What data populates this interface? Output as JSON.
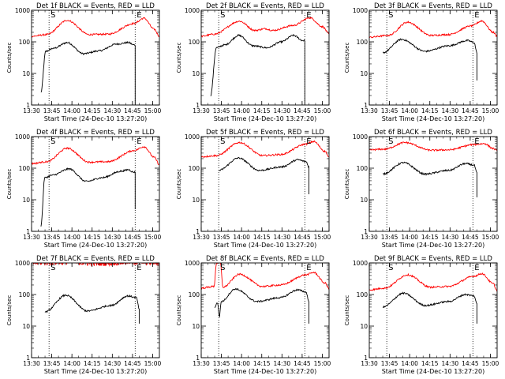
{
  "chart_data": [
    {
      "type": "line",
      "title": "Det 1f BLACK = Events, RED = LLD",
      "ylabel": "Counts/sec",
      "yscale": "log",
      "ylim": [
        1,
        1000
      ],
      "xlabel": "Start Time (24-Dec-10 13:27:20)",
      "xlim": [
        "13:30",
        "15:05"
      ],
      "xticks": [
        "13:30",
        "13:45",
        "14:00",
        "14:15",
        "14:30",
        "14:45",
        "15:00"
      ],
      "yticks": [
        "1",
        "10",
        "100",
        "1000"
      ],
      "markers": {
        "S": "13:43",
        "E": "14:47"
      },
      "series": [
        {
          "color": "#000000",
          "start": "13:37",
          "end": "14:47",
          "drop_end": 1,
          "knots": [
            [
              0,
              2.5
            ],
            [
              0.05,
              50
            ],
            [
              0.13,
              62
            ],
            [
              0.28,
              95
            ],
            [
              0.45,
              42
            ],
            [
              0.62,
              52
            ],
            [
              0.8,
              85
            ],
            [
              0.93,
              95
            ],
            [
              0.985,
              80
            ]
          ]
        },
        {
          "color": "#ff0000",
          "start": "13:30",
          "end": "15:05",
          "knots": [
            [
              0,
              150
            ],
            [
              0.12,
              170
            ],
            [
              0.28,
              480
            ],
            [
              0.45,
              170
            ],
            [
              0.6,
              175
            ],
            [
              0.8,
              380
            ],
            [
              0.88,
              560
            ],
            [
              0.96,
              250
            ],
            [
              1,
              150
            ]
          ]
        }
      ]
    },
    {
      "type": "line",
      "title": "Det 2f BLACK = Events, RED = LLD",
      "ylabel": "Counts/sec",
      "yscale": "log",
      "ylim": [
        1,
        1000
      ],
      "xlabel": "Start Time (24-Dec-10 13:27:20)",
      "xlim": [
        "13:30",
        "15:05"
      ],
      "xticks": [
        "13:30",
        "13:45",
        "14:00",
        "14:15",
        "14:30",
        "14:45",
        "15:00"
      ],
      "yticks": [
        "1",
        "10",
        "100",
        "1000"
      ],
      "markers": {
        "S": "13:43",
        "E": "14:47"
      },
      "series": [
        {
          "color": "#000000",
          "start": "13:37",
          "end": "14:47",
          "drop_end": 1,
          "knots": [
            [
              0,
              2
            ],
            [
              0.06,
              65
            ],
            [
              0.15,
              80
            ],
            [
              0.3,
              160
            ],
            [
              0.45,
              75
            ],
            [
              0.6,
              65
            ],
            [
              0.75,
              100
            ],
            [
              0.88,
              160
            ],
            [
              0.98,
              110
            ]
          ]
        },
        {
          "color": "#ff0000",
          "start": "13:30",
          "end": "15:05",
          "knots": [
            [
              0,
              150
            ],
            [
              0.1,
              175
            ],
            [
              0.3,
              450
            ],
            [
              0.42,
              230
            ],
            [
              0.5,
              260
            ],
            [
              0.56,
              230
            ],
            [
              0.72,
              330
            ],
            [
              0.85,
              580
            ],
            [
              0.95,
              300
            ],
            [
              1,
              180
            ]
          ]
        }
      ]
    },
    {
      "type": "line",
      "title": "Det 3f BLACK = Events, RED = LLD",
      "ylabel": "Counts/sec",
      "yscale": "log",
      "ylim": [
        1,
        1000
      ],
      "xlabel": "Start Time (24-Dec-10 13:27:20)",
      "xlim": [
        "13:30",
        "15:05"
      ],
      "xticks": [
        "13:30",
        "13:45",
        "14:00",
        "14:15",
        "14:30",
        "14:45",
        "15:00"
      ],
      "yticks": [
        "1",
        "10",
        "100",
        "1000"
      ],
      "markers": {
        "S": "13:43",
        "E": "14:47"
      },
      "series": [
        {
          "color": "#000000",
          "start": "13:40",
          "end": "14:50",
          "drop_end": 6,
          "knots": [
            [
              0,
              45
            ],
            [
              0.2,
              120
            ],
            [
              0.45,
              50
            ],
            [
              0.7,
              75
            ],
            [
              0.9,
              110
            ],
            [
              0.97,
              95
            ],
            [
              1,
              45
            ]
          ]
        },
        {
          "color": "#ff0000",
          "start": "13:30",
          "end": "15:05",
          "knots": [
            [
              0,
              140
            ],
            [
              0.15,
              160
            ],
            [
              0.3,
              420
            ],
            [
              0.48,
              160
            ],
            [
              0.62,
              170
            ],
            [
              0.8,
              320
            ],
            [
              0.88,
              460
            ],
            [
              0.97,
              200
            ],
            [
              1,
              150
            ]
          ]
        }
      ]
    },
    {
      "type": "line",
      "title": "Det 4f BLACK = Events, RED = LLD",
      "ylabel": "Counts/sec",
      "yscale": "log",
      "ylim": [
        1,
        1000
      ],
      "xlabel": "Start Time (24-Dec-10 13:27:20)",
      "xlim": [
        "13:30",
        "15:05"
      ],
      "xticks": [
        "13:30",
        "13:45",
        "14:00",
        "14:15",
        "14:30",
        "14:45",
        "15:00"
      ],
      "yticks": [
        "1",
        "10",
        "100",
        "1000"
      ],
      "markers": {
        "S": "13:43",
        "E": "14:47"
      },
      "series": [
        {
          "color": "#000000",
          "start": "13:37",
          "end": "14:47",
          "drop_end": 5,
          "knots": [
            [
              0,
              1.5
            ],
            [
              0.04,
              50
            ],
            [
              0.12,
              60
            ],
            [
              0.3,
              95
            ],
            [
              0.48,
              38
            ],
            [
              0.65,
              50
            ],
            [
              0.85,
              80
            ],
            [
              0.93,
              90
            ],
            [
              0.98,
              75
            ]
          ]
        },
        {
          "color": "#ff0000",
          "start": "13:30",
          "end": "15:05",
          "knots": [
            [
              0,
              140
            ],
            [
              0.12,
              160
            ],
            [
              0.28,
              430
            ],
            [
              0.45,
              155
            ],
            [
              0.6,
              160
            ],
            [
              0.8,
              360
            ],
            [
              0.88,
              480
            ],
            [
              0.96,
              220
            ],
            [
              1,
              130
            ]
          ]
        }
      ]
    },
    {
      "type": "line",
      "title": "Det 5f BLACK = Events, RED = LLD",
      "ylabel": "Counts/sec",
      "yscale": "log",
      "ylim": [
        1,
        1000
      ],
      "xlabel": "Start Time (24-Dec-10 13:27:20)",
      "xlim": [
        "13:30",
        "15:05"
      ],
      "xticks": [
        "13:30",
        "13:45",
        "14:00",
        "14:15",
        "14:30",
        "14:45",
        "15:00"
      ],
      "yticks": [
        "1",
        "10",
        "100",
        "1000"
      ],
      "markers": {
        "S": "13:43",
        "E": "14:47"
      },
      "series": [
        {
          "color": "#000000",
          "start": "13:43",
          "end": "14:50",
          "drop_end": 15,
          "knots": [
            [
              0,
              85
            ],
            [
              0.22,
              210
            ],
            [
              0.45,
              85
            ],
            [
              0.7,
              110
            ],
            [
              0.88,
              185
            ],
            [
              0.97,
              160
            ],
            [
              1,
              110
            ]
          ]
        },
        {
          "color": "#ff0000",
          "start": "13:30",
          "end": "15:05",
          "knots": [
            [
              0,
              230
            ],
            [
              0.12,
              250
            ],
            [
              0.3,
              650
            ],
            [
              0.48,
              250
            ],
            [
              0.62,
              270
            ],
            [
              0.82,
              580
            ],
            [
              0.88,
              700
            ],
            [
              0.97,
              340
            ],
            [
              1,
              220
            ]
          ]
        }
      ]
    },
    {
      "type": "line",
      "title": "Det 6f BLACK = Events, RED = LLD",
      "ylabel": "Counts/sec",
      "yscale": "log",
      "ylim": [
        1,
        1000
      ],
      "xlabel": "Start Time (24-Dec-10 13:27:20)",
      "xlim": [
        "13:30",
        "15:05"
      ],
      "xticks": [
        "13:30",
        "13:45",
        "14:00",
        "14:15",
        "14:30",
        "14:45",
        "15:00"
      ],
      "yticks": [
        "1",
        "10",
        "100",
        "1000"
      ],
      "markers": {
        "S": "13:43",
        "E": "14:47"
      },
      "series": [
        {
          "color": "#000000",
          "start": "13:40",
          "end": "14:50",
          "drop_end": 12,
          "knots": [
            [
              0,
              65
            ],
            [
              0.22,
              150
            ],
            [
              0.45,
              65
            ],
            [
              0.7,
              85
            ],
            [
              0.88,
              140
            ],
            [
              0.97,
              125
            ],
            [
              1,
              70
            ]
          ]
        },
        {
          "color": "#ff0000",
          "start": "13:30",
          "end": "15:05",
          "knots": [
            [
              0,
              380
            ],
            [
              0.12,
              400
            ],
            [
              0.28,
              650
            ],
            [
              0.48,
              370
            ],
            [
              0.62,
              380
            ],
            [
              0.82,
              560
            ],
            [
              0.9,
              600
            ],
            [
              0.97,
              420
            ],
            [
              1,
              360
            ]
          ]
        }
      ]
    },
    {
      "type": "line",
      "title": "Det 7f BLACK = Events, RED = LLD",
      "ylabel": "Counts/sec",
      "yscale": "log",
      "ylim": [
        1,
        1000
      ],
      "xlabel": "Start Time (24-Dec-10 13:27:20)",
      "xlim": [
        "13:30",
        "15:05"
      ],
      "xticks": [
        "13:30",
        "13:45",
        "14:00",
        "14:15",
        "14:30",
        "14:45",
        "15:00"
      ],
      "yticks": [
        "1",
        "10",
        "100",
        "1000"
      ],
      "markers": {
        "S": "13:43",
        "E": "14:47"
      },
      "series": [
        {
          "color": "#000000",
          "start": "13:40",
          "end": "14:50",
          "drop_end": 12,
          "knots": [
            [
              0,
              28
            ],
            [
              0.22,
              95
            ],
            [
              0.45,
              30
            ],
            [
              0.7,
              45
            ],
            [
              0.88,
              90
            ],
            [
              0.97,
              80
            ],
            [
              1,
              35
            ]
          ]
        },
        {
          "color": "#ff0000",
          "start": "13:30",
          "end": "15:05",
          "noise": 0.18,
          "knots": [
            [
              0,
              1000
            ],
            [
              0.3,
              1050
            ],
            [
              0.5,
              950
            ],
            [
              0.8,
              1050
            ],
            [
              1,
              1000
            ]
          ]
        }
      ]
    },
    {
      "type": "line",
      "title": "Det 8f BLACK = Events, RED = LLD",
      "ylabel": "Counts/sec",
      "yscale": "log",
      "ylim": [
        1,
        1000
      ],
      "xlabel": "Start Time (24-Dec-10 13:27:20)",
      "xlim": [
        "13:30",
        "15:05"
      ],
      "xticks": [
        "13:30",
        "13:45",
        "14:00",
        "14:15",
        "14:30",
        "14:45",
        "15:00"
      ],
      "yticks": [
        "1",
        "10",
        "100",
        "1000"
      ],
      "markers": {
        "S": "13:43",
        "E": "14:47"
      },
      "series": [
        {
          "color": "#000000",
          "start": "13:40",
          "end": "14:50",
          "drop_end": 12,
          "knots": [
            [
              0,
              40
            ],
            [
              0.03,
              55
            ],
            [
              0.05,
              20
            ],
            [
              0.07,
              60
            ],
            [
              0.22,
              150
            ],
            [
              0.45,
              60
            ],
            [
              0.7,
              80
            ],
            [
              0.88,
              140
            ],
            [
              0.97,
              120
            ],
            [
              1,
              60
            ]
          ]
        },
        {
          "color": "#ff0000",
          "start": "13:30",
          "end": "15:05",
          "knots": [
            [
              0,
              160
            ],
            [
              0.1,
              180
            ],
            [
              0.12,
              1000
            ],
            [
              0.15,
              1000
            ],
            [
              0.17,
              170
            ],
            [
              0.3,
              440
            ],
            [
              0.48,
              180
            ],
            [
              0.62,
              200
            ],
            [
              0.82,
              420
            ],
            [
              0.88,
              500
            ],
            [
              0.97,
              230
            ],
            [
              1,
              150
            ]
          ]
        }
      ]
    },
    {
      "type": "line",
      "title": "Det 9f BLACK = Events, RED = LLD",
      "ylabel": "Counts/sec",
      "yscale": "log",
      "ylim": [
        1,
        1000
      ],
      "xlabel": "Start Time (24-Dec-10 13:27:20)",
      "xlim": [
        "13:30",
        "15:05"
      ],
      "xticks": [
        "13:30",
        "13:45",
        "14:00",
        "14:15",
        "14:30",
        "14:45",
        "15:00"
      ],
      "yticks": [
        "1",
        "10",
        "100",
        "1000"
      ],
      "markers": {
        "S": "13:43",
        "E": "14:47"
      },
      "series": [
        {
          "color": "#000000",
          "start": "13:40",
          "end": "14:50",
          "drop_end": 12,
          "knots": [
            [
              0,
              40
            ],
            [
              0.22,
              110
            ],
            [
              0.45,
              45
            ],
            [
              0.7,
              60
            ],
            [
              0.88,
              100
            ],
            [
              0.97,
              90
            ],
            [
              1,
              50
            ]
          ]
        },
        {
          "color": "#ff0000",
          "start": "13:30",
          "end": "15:05",
          "knots": [
            [
              0,
              140
            ],
            [
              0.12,
              160
            ],
            [
              0.3,
              420
            ],
            [
              0.48,
              170
            ],
            [
              0.62,
              180
            ],
            [
              0.82,
              380
            ],
            [
              0.88,
              460
            ],
            [
              0.97,
              220
            ],
            [
              1,
              130
            ]
          ]
        }
      ]
    }
  ]
}
